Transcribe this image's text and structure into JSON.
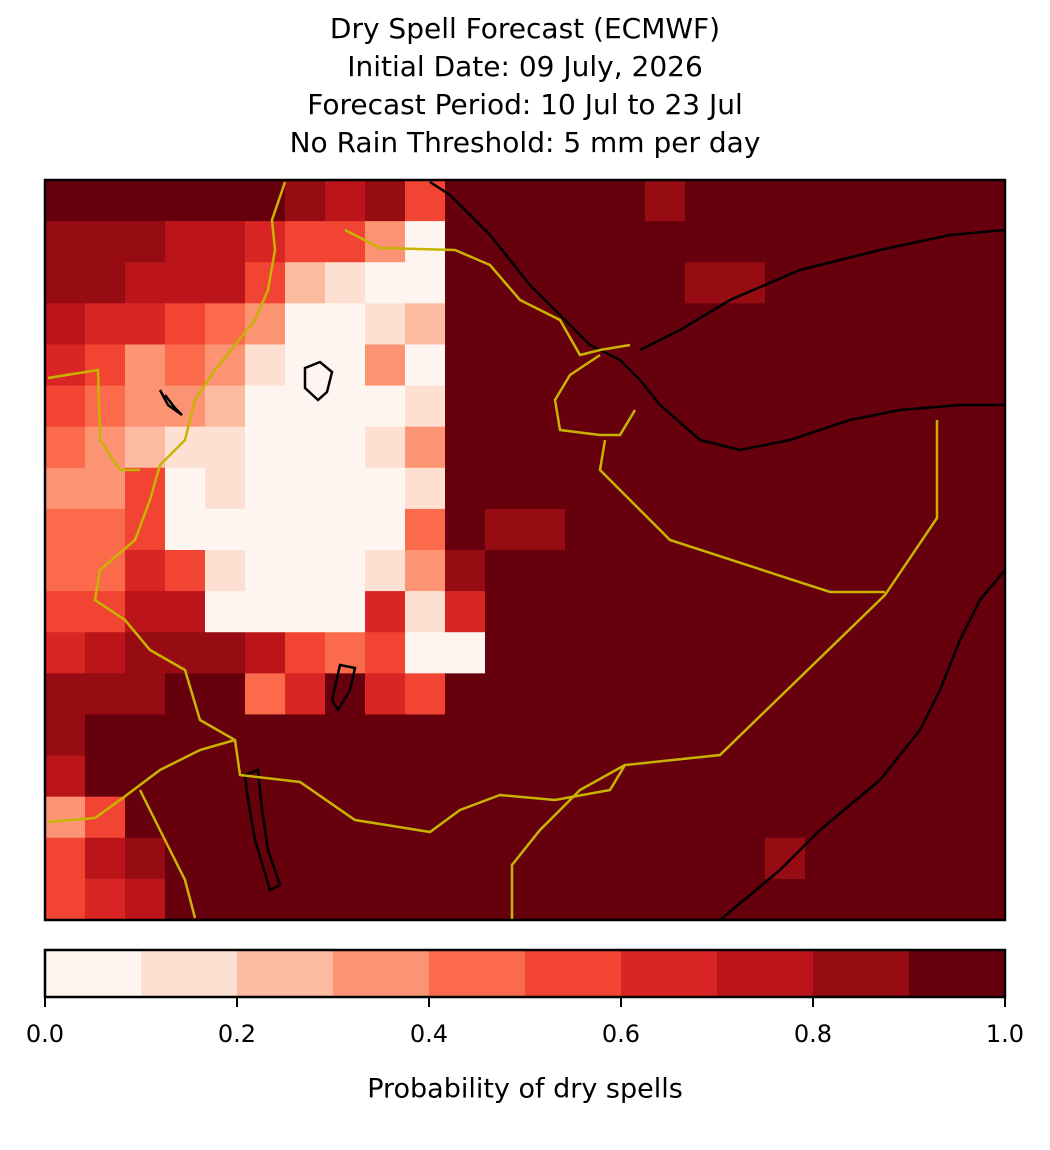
{
  "map": {
    "title_lines": [
      "Dry Spell Forecast (ECMWF)",
      "Initial Date: 09 July, 2026",
      "Forecast Period: 10 Jul to 23 Jul",
      "No Rain Threshold: 5 mm per day"
    ],
    "grid": {
      "rows": [
        [
          0.95,
          0.95,
          0.95,
          0.95,
          0.95,
          0.9,
          0.85,
          0.75,
          0.85,
          0.5,
          0.95,
          0.95,
          0.95,
          0.95,
          0.95,
          0.85,
          0.95,
          0.95,
          0.95,
          0.95,
          0.95,
          0.95,
          0.95,
          0.95
        ],
        [
          0.85,
          0.85,
          0.8,
          0.75,
          0.75,
          0.6,
          0.55,
          0.55,
          0.35,
          0.05,
          0.95,
          0.95,
          0.95,
          0.95,
          0.95,
          0.95,
          0.95,
          0.95,
          0.95,
          0.95,
          0.95,
          0.95,
          0.95,
          0.95
        ],
        [
          0.85,
          0.8,
          0.75,
          0.7,
          0.7,
          0.5,
          0.25,
          0.1,
          0.05,
          0.05,
          0.95,
          0.95,
          0.95,
          0.95,
          0.95,
          0.95,
          0.85,
          0.85,
          0.95,
          0.95,
          0.95,
          0.95,
          0.95,
          0.95
        ],
        [
          0.75,
          0.65,
          0.6,
          0.55,
          0.45,
          0.35,
          0.05,
          0.05,
          0.1,
          0.25,
          0.95,
          0.95,
          0.95,
          0.95,
          0.95,
          0.95,
          0.95,
          0.95,
          0.95,
          0.95,
          0.95,
          0.95,
          0.95,
          0.95
        ],
        [
          0.65,
          0.55,
          0.35,
          0.4,
          0.35,
          0.15,
          0.05,
          0.05,
          0.3,
          0.05,
          0.95,
          0.95,
          0.95,
          0.95,
          0.95,
          0.95,
          0.95,
          0.95,
          0.95,
          0.95,
          0.95,
          0.95,
          0.95,
          0.95
        ],
        [
          0.55,
          0.45,
          0.35,
          0.3,
          0.2,
          0.05,
          0.05,
          0.05,
          0.05,
          0.15,
          0.95,
          0.95,
          0.95,
          0.95,
          0.95,
          0.95,
          0.95,
          0.95,
          0.95,
          0.95,
          0.95,
          0.95,
          0.95,
          0.95
        ],
        [
          0.45,
          0.35,
          0.25,
          0.15,
          0.1,
          0.05,
          0.05,
          0.05,
          0.15,
          0.3,
          0.95,
          0.95,
          0.95,
          0.95,
          0.95,
          0.95,
          0.95,
          0.95,
          0.95,
          0.95,
          0.95,
          0.95,
          0.95,
          0.95
        ],
        [
          0.35,
          0.3,
          0.55,
          0.05,
          0.1,
          0.05,
          0.05,
          0.05,
          0.05,
          0.1,
          0.95,
          0.95,
          0.95,
          0.95,
          0.95,
          0.95,
          0.95,
          0.95,
          0.95,
          0.95,
          0.95,
          0.95,
          0.95,
          0.95
        ],
        [
          0.45,
          0.45,
          0.55,
          0.05,
          0.05,
          0.05,
          0.05,
          0.05,
          0.05,
          0.4,
          0.95,
          0.85,
          0.85,
          0.95,
          0.95,
          0.95,
          0.95,
          0.95,
          0.95,
          0.95,
          0.95,
          0.95,
          0.95,
          0.95
        ],
        [
          0.45,
          0.45,
          0.6,
          0.55,
          0.1,
          0.05,
          0.05,
          0.05,
          0.15,
          0.35,
          0.8,
          0.95,
          0.95,
          0.95,
          0.95,
          0.95,
          0.95,
          0.95,
          0.95,
          0.95,
          0.95,
          0.95,
          0.95,
          0.95
        ],
        [
          0.55,
          0.5,
          0.75,
          0.75,
          0.05,
          0.05,
          0.05,
          0.05,
          0.6,
          0.15,
          0.6,
          0.95,
          0.95,
          0.95,
          0.95,
          0.95,
          0.95,
          0.95,
          0.95,
          0.95,
          0.95,
          0.95,
          0.95,
          0.95
        ],
        [
          0.6,
          0.75,
          0.85,
          0.85,
          0.85,
          0.7,
          0.5,
          0.4,
          0.5,
          0.05,
          0.05,
          0.95,
          0.95,
          0.95,
          0.95,
          0.95,
          0.95,
          0.95,
          0.95,
          0.95,
          0.95,
          0.95,
          0.95,
          0.95
        ],
        [
          0.85,
          0.85,
          0.85,
          0.95,
          0.95,
          0.45,
          0.6,
          0.95,
          0.6,
          0.55,
          0.95,
          0.95,
          0.95,
          0.95,
          0.95,
          0.95,
          0.95,
          0.95,
          0.95,
          0.95,
          0.95,
          0.95,
          0.95,
          0.95
        ],
        [
          0.85,
          0.95,
          0.95,
          0.95,
          0.95,
          0.95,
          0.95,
          0.95,
          0.95,
          0.95,
          0.95,
          0.95,
          0.95,
          0.95,
          0.95,
          0.95,
          0.95,
          0.95,
          0.95,
          0.95,
          0.95,
          0.95,
          0.95,
          0.95
        ],
        [
          0.7,
          0.9,
          0.95,
          0.95,
          0.95,
          0.95,
          0.95,
          0.95,
          0.95,
          0.95,
          0.95,
          0.95,
          0.95,
          0.95,
          0.95,
          0.95,
          0.95,
          0.95,
          0.95,
          0.95,
          0.95,
          0.95,
          0.95,
          0.95
        ],
        [
          0.3,
          0.5,
          0.95,
          0.95,
          0.95,
          0.95,
          0.95,
          0.95,
          0.95,
          0.95,
          0.95,
          0.95,
          0.95,
          0.95,
          0.95,
          0.95,
          0.95,
          0.95,
          0.95,
          0.95,
          0.95,
          0.95,
          0.95,
          0.95
        ],
        [
          0.55,
          0.75,
          0.85,
          0.95,
          0.95,
          0.95,
          0.95,
          0.95,
          0.95,
          0.95,
          0.95,
          0.95,
          0.95,
          0.95,
          0.95,
          0.95,
          0.95,
          0.95,
          0.85,
          0.95,
          0.95,
          0.95,
          0.95,
          0.95
        ],
        [
          0.55,
          0.65,
          0.75,
          0.95,
          0.95,
          0.95,
          0.95,
          0.95,
          0.95,
          0.95,
          0.95,
          0.95,
          0.95,
          0.95,
          0.95,
          0.95,
          0.95,
          0.95,
          0.95,
          0.95,
          0.95,
          0.95,
          0.95,
          0.95
        ]
      ]
    },
    "colorbar": {
      "boundaries": [
        0,
        0.1,
        0.2,
        0.3,
        0.4,
        0.5,
        0.6,
        0.7,
        0.8,
        0.9,
        1
      ],
      "colors": [
        "#fff5f0",
        "#fee0d3",
        "#fcbba1",
        "#fc9474",
        "#fb6a4a",
        "#f14432",
        "#d92523",
        "#bb151a",
        "#970b13",
        "#67000d"
      ],
      "ticks": [
        {
          "value": 0,
          "label": "0.0"
        },
        0.2,
        0.4,
        0.6,
        0.8,
        {
          "value": 1,
          "label": "1.0"
        }
      ],
      "label": "Probability of dry spells"
    }
  }
}
